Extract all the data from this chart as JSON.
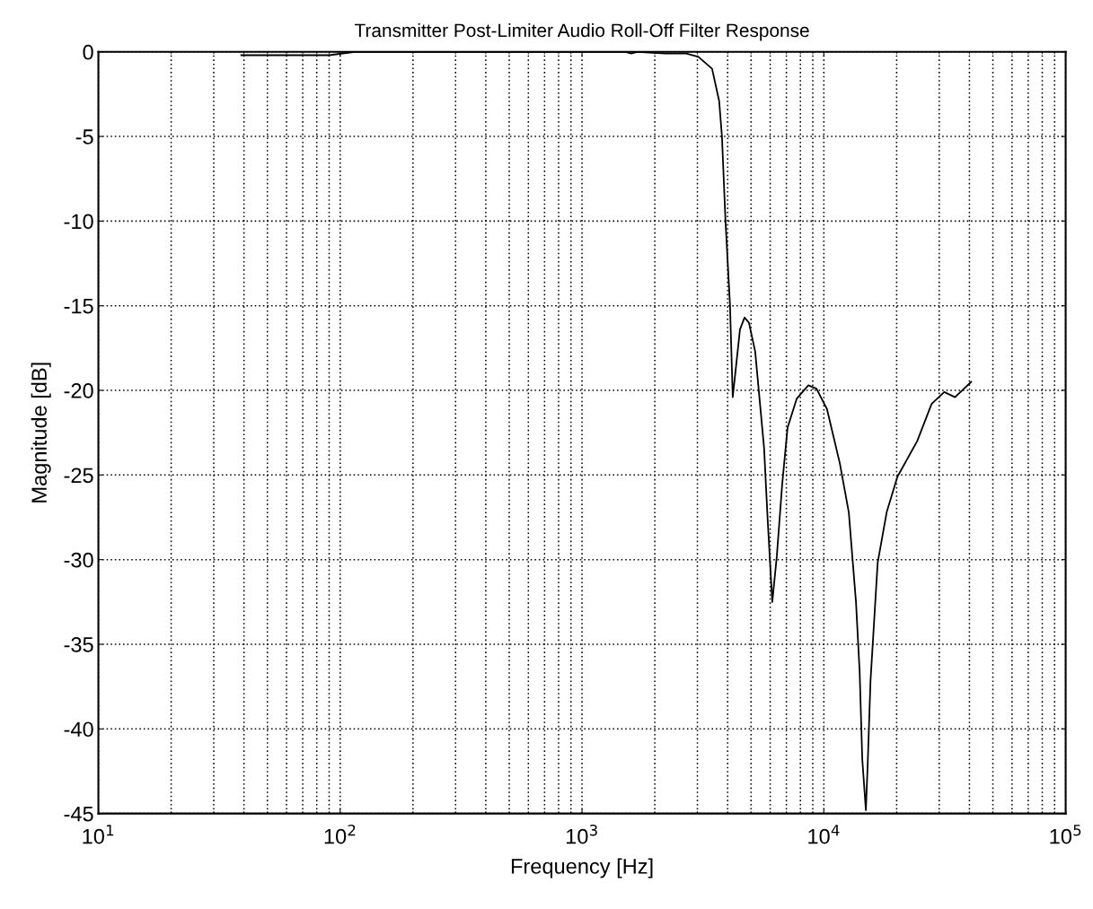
{
  "chart_data": {
    "type": "line",
    "title": "Transmitter Post-Limiter Audio Roll-Off Filter Response",
    "xlabel": "Frequency [Hz]",
    "ylabel": "Magnitude [dB]",
    "log": "x",
    "grid": true,
    "line_style": "solid",
    "marker": "none",
    "xlim": [
      10,
      100000
    ],
    "xticks": [
      {
        "value": 10,
        "label": "10$^{1}$"
      },
      {
        "value": 100,
        "label": "10$^{2}$"
      },
      {
        "value": 1000,
        "label": "10$^{3}$"
      },
      {
        "value": 10000,
        "label": "10$^{4}$"
      },
      {
        "value": 100000,
        "label": "10$^{5}$"
      }
    ],
    "ylim": [
      -45,
      0
    ],
    "yticks": [
      -45,
      -40,
      -35,
      -30,
      -25,
      -20,
      -15,
      -10,
      -5,
      0
    ],
    "series": [
      {
        "color": "#000000",
        "x": [
          39,
          60,
          90,
          115,
          300,
          1000,
          1500,
          1600,
          1700,
          2200,
          2700,
          3030,
          3450,
          3690,
          3790,
          3920,
          4090,
          4200,
          4500,
          4700,
          4900,
          5200,
          5660,
          5860,
          6120,
          6390,
          6730,
          7080,
          7720,
          8630,
          9320,
          10300,
          11640,
          12680,
          13580,
          14060,
          14420,
          14920,
          15180,
          15590,
          16690,
          18190,
          20150,
          24320,
          27900,
          31470,
          34860,
          40660
        ],
        "values": [
          -0.2,
          -0.2,
          -0.2,
          0,
          0,
          0,
          0,
          -0.1,
          0,
          -0.1,
          -0.1,
          -0.3,
          -1.0,
          -2.9,
          -5.0,
          -10.0,
          -14.9,
          -20.4,
          -16.4,
          -15.7,
          -16.0,
          -17.7,
          -23.4,
          -27.7,
          -32.5,
          -29.8,
          -25.5,
          -22.2,
          -20.5,
          -19.7,
          -19.9,
          -21.1,
          -24.3,
          -27.2,
          -32.5,
          -36.6,
          -41.8,
          -44.8,
          -42.1,
          -37.2,
          -30.2,
          -27.2,
          -25.1,
          -23.0,
          -20.8,
          -20.1,
          -20.4,
          -19.5
        ]
      }
    ]
  }
}
